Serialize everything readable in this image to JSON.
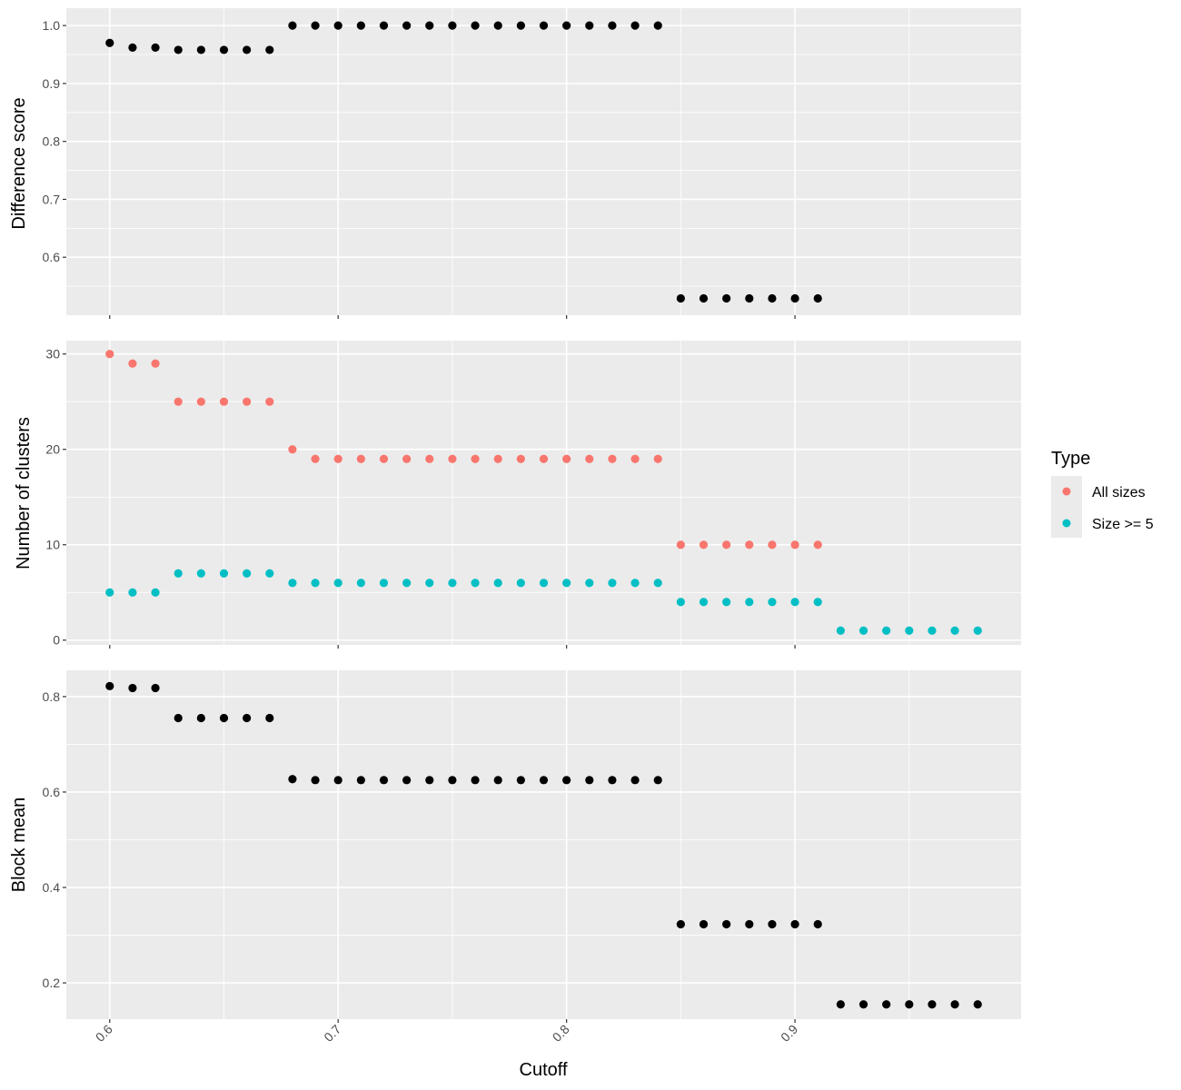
{
  "chart_data": [
    {
      "type": "scatter",
      "ylabel": "Difference score",
      "ylim": [
        0.5,
        1.03
      ],
      "yticks": [
        0.6,
        0.7,
        0.8,
        0.9,
        1.0
      ],
      "ytick_labels": [
        "0.6",
        "0.7",
        "0.8",
        "0.9",
        "1.0"
      ],
      "grid": true,
      "series": [
        {
          "color": "#000000",
          "x": [
            0.6,
            0.61,
            0.62,
            0.63,
            0.64,
            0.65,
            0.66,
            0.67,
            0.68,
            0.69,
            0.7,
            0.71,
            0.72,
            0.73,
            0.74,
            0.75,
            0.76,
            0.77,
            0.78,
            0.79,
            0.8,
            0.81,
            0.82,
            0.83,
            0.84,
            0.85,
            0.86,
            0.87,
            0.88,
            0.89,
            0.9,
            0.91
          ],
          "y": [
            0.97,
            0.962,
            0.962,
            0.958,
            0.958,
            0.958,
            0.958,
            0.958,
            1.0,
            1.0,
            1.0,
            1.0,
            1.0,
            1.0,
            1.0,
            1.0,
            1.0,
            1.0,
            1.0,
            1.0,
            1.0,
            1.0,
            1.0,
            1.0,
            1.0,
            0.529,
            0.529,
            0.529,
            0.529,
            0.529,
            0.529,
            0.529
          ]
        }
      ]
    },
    {
      "type": "scatter",
      "ylabel": "Number of clusters",
      "ylim": [
        -0.5,
        31.4
      ],
      "yticks": [
        0,
        10,
        20,
        30
      ],
      "ytick_labels": [
        "0",
        "10",
        "20",
        "30"
      ],
      "grid": true,
      "legend": {
        "title": "Type",
        "placement": "right",
        "entries": [
          {
            "label": "All sizes",
            "color": "#F8766D"
          },
          {
            "label": "Size >= 5",
            "color": "#00BFC4"
          }
        ]
      },
      "series": [
        {
          "name": "All sizes",
          "color": "#F8766D",
          "x": [
            0.6,
            0.61,
            0.62,
            0.63,
            0.64,
            0.65,
            0.66,
            0.67,
            0.68,
            0.69,
            0.7,
            0.71,
            0.72,
            0.73,
            0.74,
            0.75,
            0.76,
            0.77,
            0.78,
            0.79,
            0.8,
            0.81,
            0.82,
            0.83,
            0.84,
            0.85,
            0.86,
            0.87,
            0.88,
            0.89,
            0.9,
            0.91
          ],
          "y": [
            30,
            29,
            29,
            25,
            25,
            25,
            25,
            25,
            20,
            19,
            19,
            19,
            19,
            19,
            19,
            19,
            19,
            19,
            19,
            19,
            19,
            19,
            19,
            19,
            19,
            10,
            10,
            10,
            10,
            10,
            10,
            10
          ]
        },
        {
          "name": "Size >= 5",
          "color": "#00BFC4",
          "x": [
            0.6,
            0.61,
            0.62,
            0.63,
            0.64,
            0.65,
            0.66,
            0.67,
            0.68,
            0.69,
            0.7,
            0.71,
            0.72,
            0.73,
            0.74,
            0.75,
            0.76,
            0.77,
            0.78,
            0.79,
            0.8,
            0.81,
            0.82,
            0.83,
            0.84,
            0.85,
            0.86,
            0.87,
            0.88,
            0.89,
            0.9,
            0.91,
            0.92,
            0.93,
            0.94,
            0.95,
            0.96,
            0.97,
            0.98
          ],
          "y": [
            5,
            5,
            5,
            7,
            7,
            7,
            7,
            7,
            6,
            6,
            6,
            6,
            6,
            6,
            6,
            6,
            6,
            6,
            6,
            6,
            6,
            6,
            6,
            6,
            6,
            4,
            4,
            4,
            4,
            4,
            4,
            4,
            1,
            1,
            1,
            1,
            1,
            1,
            1
          ]
        }
      ]
    },
    {
      "type": "scatter",
      "xlabel": "Cutoff",
      "ylabel": "Block mean",
      "ylim": [
        0.124,
        0.855
      ],
      "yticks": [
        0.2,
        0.4,
        0.6,
        0.8
      ],
      "ytick_labels": [
        "0.2",
        "0.4",
        "0.6",
        "0.8"
      ],
      "grid": true,
      "series": [
        {
          "color": "#000000",
          "x": [
            0.6,
            0.61,
            0.62,
            0.63,
            0.64,
            0.65,
            0.66,
            0.67,
            0.68,
            0.69,
            0.7,
            0.71,
            0.72,
            0.73,
            0.74,
            0.75,
            0.76,
            0.77,
            0.78,
            0.79,
            0.8,
            0.81,
            0.82,
            0.83,
            0.84,
            0.85,
            0.86,
            0.87,
            0.88,
            0.89,
            0.9,
            0.91,
            0.92,
            0.93,
            0.94,
            0.95,
            0.96,
            0.97,
            0.98
          ],
          "y": [
            0.822,
            0.818,
            0.818,
            0.755,
            0.755,
            0.755,
            0.755,
            0.755,
            0.627,
            0.625,
            0.625,
            0.625,
            0.625,
            0.625,
            0.625,
            0.625,
            0.625,
            0.625,
            0.625,
            0.625,
            0.625,
            0.625,
            0.625,
            0.625,
            0.625,
            0.323,
            0.323,
            0.323,
            0.323,
            0.323,
            0.323,
            0.323,
            0.155,
            0.155,
            0.155,
            0.155,
            0.155,
            0.155,
            0.155
          ]
        }
      ]
    }
  ],
  "x_axis": {
    "xlim": [
      0.581,
      0.999
    ],
    "ticks": [
      0.6,
      0.7,
      0.8,
      0.9
    ],
    "tick_labels": [
      "0.6",
      "0.7",
      "0.8",
      "0.9"
    ]
  }
}
